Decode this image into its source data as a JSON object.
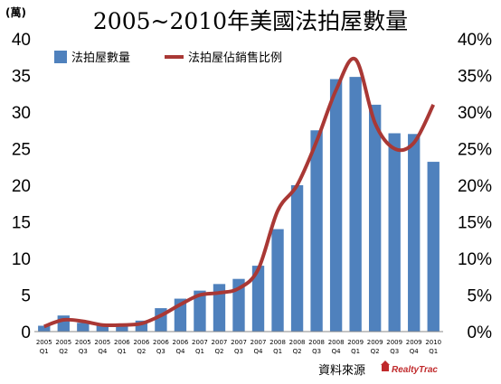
{
  "chart_data": {
    "type": "bar",
    "title": "2005~2010年美國法拍屋數量",
    "y_unit": "(萬)",
    "categories": [
      [
        "2005",
        "Q1"
      ],
      [
        "2005",
        "Q2"
      ],
      [
        "2005",
        "Q3"
      ],
      [
        "2005",
        "Q4"
      ],
      [
        "2006",
        "Q1"
      ],
      [
        "2006",
        "Q2"
      ],
      [
        "2006",
        "Q3"
      ],
      [
        "2006",
        "Q4"
      ],
      [
        "2007",
        "Q1"
      ],
      [
        "2007",
        "Q2"
      ],
      [
        "2007",
        "Q3"
      ],
      [
        "2007",
        "Q4"
      ],
      [
        "2008",
        "Q1"
      ],
      [
        "2008",
        "Q2"
      ],
      [
        "2008",
        "Q3"
      ],
      [
        "2008",
        "Q4"
      ],
      [
        "2009",
        "Q1"
      ],
      [
        "2009",
        "Q2"
      ],
      [
        "2009",
        "Q3"
      ],
      [
        "2009",
        "Q4"
      ],
      [
        "2010",
        "Q1"
      ]
    ],
    "series": [
      {
        "name": "法拍屋數量",
        "type": "bar",
        "axis": "left",
        "color": "#4f81bd",
        "values": [
          0.8,
          2.2,
          1.2,
          0.9,
          0.9,
          1.5,
          3.2,
          4.5,
          5.6,
          6.5,
          7.2,
          9.0,
          14.0,
          20.0,
          27.5,
          34.5,
          34.8,
          31.0,
          27.1,
          27.0,
          23.2
        ]
      },
      {
        "name": "法拍屋佔銷售比例",
        "type": "line",
        "axis": "right",
        "color": "#a93835",
        "values": [
          0.7,
          1.6,
          1.4,
          0.9,
          0.9,
          1.1,
          2.2,
          3.7,
          5.0,
          5.3,
          5.9,
          8.5,
          16.5,
          20.0,
          26.0,
          33.0,
          37.2,
          28.5,
          25.0,
          25.8,
          31.0
        ]
      }
    ],
    "ylim_left": [
      0,
      40
    ],
    "yticks_left": [
      "0",
      "5",
      "10",
      "15",
      "20",
      "25",
      "30",
      "35",
      "40"
    ],
    "ylim_right": [
      0,
      40
    ],
    "yticks_right": [
      "0%",
      "5%",
      "10%",
      "15%",
      "20%",
      "25%",
      "30%",
      "35%",
      "40%"
    ],
    "legend_position": "top-left",
    "grid": false,
    "source_label": "資料來源",
    "source_brand": "RealtyTrac"
  }
}
